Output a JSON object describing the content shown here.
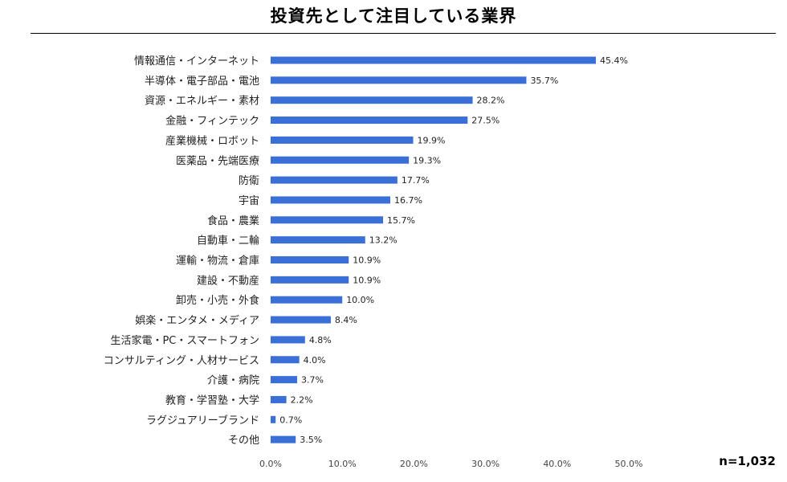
{
  "chart_data": {
    "type": "bar",
    "orientation": "horizontal",
    "title": "投資先として注目している業界",
    "categories": [
      "情報通信・インターネット",
      "半導体・電子部品・電池",
      "資源・エネルギー・素材",
      "金融・フィンテック",
      "産業機械・ロボット",
      "医薬品・先端医療",
      "防衛",
      "宇宙",
      "食品・農業",
      "自動車・二輪",
      "運輸・物流・倉庫",
      "建設・不動産",
      "卸売・小売・外食",
      "娯楽・エンタメ・メディア",
      "生活家電・PC・スマートフォン",
      "コンサルティング・人材サービス",
      "介護・病院",
      "教育・学習塾・大学",
      "ラグジュアリーブランド",
      "その他"
    ],
    "values": [
      45.4,
      35.7,
      28.2,
      27.5,
      19.9,
      19.3,
      17.7,
      16.7,
      15.7,
      13.2,
      10.9,
      10.9,
      10.0,
      8.4,
      4.8,
      4.0,
      3.7,
      2.2,
      0.7,
      3.5
    ],
    "value_labels": [
      "45.4%",
      "35.7%",
      "28.2%",
      "27.5%",
      "19.9%",
      "19.3%",
      "17.7%",
      "16.7%",
      "15.7%",
      "13.2%",
      "10.9%",
      "10.9%",
      "10.0%",
      "8.4%",
      "4.8%",
      "4.0%",
      "3.7%",
      "2.2%",
      "0.7%",
      "3.5%"
    ],
    "x_ticks": [
      0,
      10,
      20,
      30,
      40,
      50
    ],
    "x_tick_labels": [
      "0.0%",
      "10.0%",
      "20.0%",
      "30.0%",
      "40.0%",
      "50.0%"
    ],
    "xlim": [
      0,
      50
    ],
    "grid": false,
    "bar_color": "#3A6FD8",
    "sample_size": "n=1,032"
  }
}
